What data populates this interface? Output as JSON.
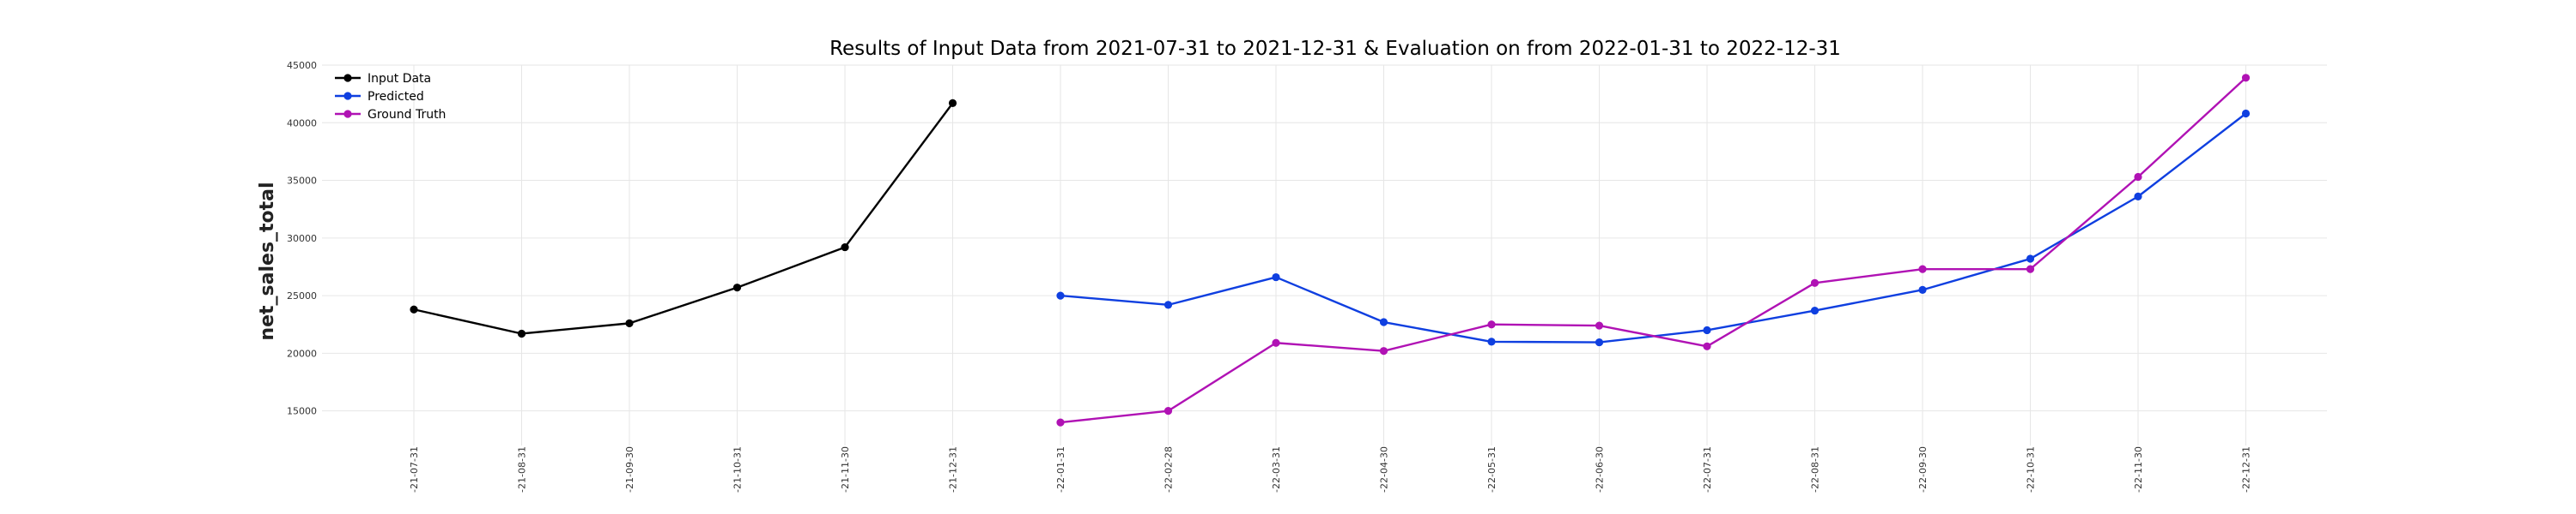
{
  "chart_data": {
    "type": "line",
    "title": "Results of Input Data from 2021-07-31 to 2021-12-31 & Evaluation on from 2022-01-31 to 2022-12-31",
    "xlabel": "",
    "ylabel": "net_sales_total",
    "ylim": [
      12000,
      45000
    ],
    "yticks": [
      15000,
      20000,
      25000,
      30000,
      35000,
      40000,
      45000
    ],
    "x_tick_labels": [
      "-21-07-31",
      "-21-08-31",
      "-21-09-30",
      "-21-10-31",
      "-21-11-30",
      "-21-12-31",
      "-22-01-31",
      "-22-02-28",
      "-22-03-31",
      "-22-04-30",
      "-22-05-31",
      "-22-06-30",
      "-22-07-31",
      "-22-08-31",
      "-22-09-30",
      "-22-10-31",
      "-22-11-30",
      "-22-12-31"
    ],
    "grid": true,
    "legend_placement": "top-left",
    "series": [
      {
        "name": "Input Data",
        "color": "#000000",
        "x": [
          "2021-07-31",
          "2021-08-31",
          "2021-09-30",
          "2021-10-31",
          "2021-11-30",
          "2021-12-31"
        ],
        "values": [
          23800,
          21700,
          22600,
          25700,
          29200,
          41700
        ]
      },
      {
        "name": "Predicted",
        "color": "#0f3fe0",
        "x": [
          "2022-01-31",
          "2022-02-28",
          "2022-03-31",
          "2022-04-30",
          "2022-05-31",
          "2022-06-30",
          "2022-07-31",
          "2022-08-31",
          "2022-09-30",
          "2022-10-31",
          "2022-11-30",
          "2022-12-31"
        ],
        "values": [
          25000,
          24200,
          26600,
          22700,
          21000,
          20950,
          22000,
          23700,
          25500,
          28200,
          33600,
          40800
        ]
      },
      {
        "name": "Ground Truth",
        "color": "#b012b4",
        "x": [
          "2022-01-31",
          "2022-02-28",
          "2022-03-31",
          "2022-04-30",
          "2022-05-31",
          "2022-06-30",
          "2022-07-31",
          "2022-08-31",
          "2022-09-30",
          "2022-10-31",
          "2022-11-30",
          "2022-12-31"
        ],
        "values": [
          14000,
          15000,
          20900,
          20200,
          22500,
          22400,
          20600,
          26100,
          27300,
          27300,
          35300,
          43900
        ]
      }
    ]
  }
}
